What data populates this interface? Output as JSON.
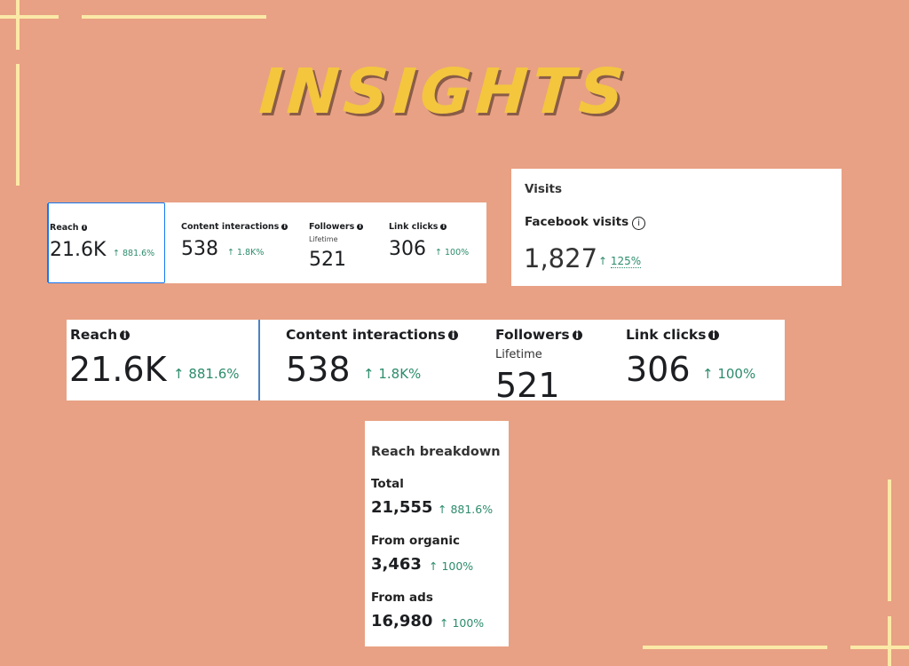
{
  "page": {
    "title": "INSIGHTS"
  },
  "colors": {
    "background": "#e8a184",
    "title": "#f3c63e",
    "accent_line": "#fbe9a7",
    "positive": "#2d8c6c",
    "selected_border": "#1877f2"
  },
  "metrics_small": {
    "reach": {
      "label": "Reach",
      "value": "21.6K",
      "change": "↑ 881.6%"
    },
    "content_interactions": {
      "label": "Content interactions",
      "value": "538",
      "change": "↑ 1.8K%"
    },
    "followers": {
      "label": "Followers",
      "sublabel": "Lifetime",
      "value": "521"
    },
    "link_clicks": {
      "label": "Link clicks",
      "value": "306",
      "change": "↑ 100%"
    }
  },
  "visits": {
    "heading": "Visits",
    "label": "Facebook visits",
    "value": "1,827",
    "change_arrow": "↑",
    "change_pct": "125%"
  },
  "metrics_large": {
    "reach": {
      "label": "Reach",
      "value": "21.6K",
      "change": "↑ 881.6%"
    },
    "content_interactions": {
      "label": "Content interactions",
      "value": "538",
      "change": "↑ 1.8K%"
    },
    "followers": {
      "label": "Followers",
      "sublabel": "Lifetime",
      "value": "521"
    },
    "link_clicks": {
      "label": "Link clicks",
      "value": "306",
      "change": "↑ 100%"
    }
  },
  "reach_breakdown": {
    "heading": "Reach breakdown",
    "rows": [
      {
        "label": "Total",
        "value": "21,555",
        "change": "↑ 881.6%"
      },
      {
        "label": "From organic",
        "value": "3,463",
        "change": "↑ 100%"
      },
      {
        "label": "From ads",
        "value": "16,980",
        "change": "↑ 100%"
      }
    ]
  },
  "icons": {
    "info": "info-icon",
    "info_outline": "info-outline-icon"
  }
}
